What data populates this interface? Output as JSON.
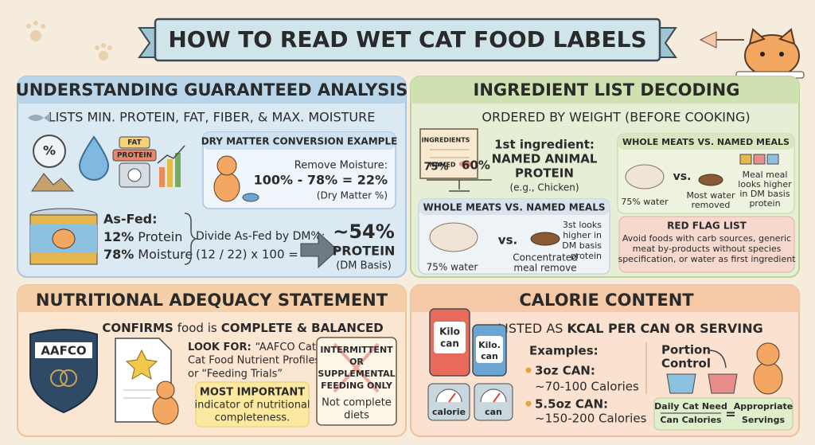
{
  "title": "HOW TO READ WET CAT FOOD LABELS",
  "guaranteed_analysis": {
    "header": "UNDERSTANDING GUARANTEED ANALYSIS",
    "subheader": "LISTS MIN. PROTEIN, FAT, FIBER, & MAX. MOISTURE",
    "icon_labels": [
      "%",
      "FAT",
      "PROTEIN"
    ],
    "example": {
      "title": "DRY MATTER CONVERSION EXAMPLE",
      "lines": [
        "Remove Moisture:",
        "100% - 78% = 22%",
        "(Dry Matter %)"
      ]
    },
    "as_fed": {
      "label": "As-Fed:",
      "protein": [
        "12%",
        "Protein"
      ],
      "moisture": [
        "78%",
        "Moisture"
      ]
    },
    "divide": [
      "Divide As-Fed by DM%:",
      "(12 / 22) x 100 ="
    ],
    "result": [
      "~54%",
      "PROTEIN",
      "(DM Basis)"
    ]
  },
  "ingredient_list": {
    "header": "INGREDIENT LIST DECODING",
    "subheader": "ORDERED BY WEIGHT (BEFORE COOKING)",
    "scroll_labels": [
      "INGREDIENTS",
      "NAMED"
    ],
    "scale_labels": [
      "75%",
      "60%"
    ],
    "first_ingredient": [
      "1st ingredient:",
      "NAMED ANIMAL",
      "PROTEIN",
      "(e.g., Chicken)"
    ],
    "left_compare": {
      "title": "WHOLE MEATS VS. NAMED MEALS",
      "water": "75% water",
      "vs": "vs.",
      "meal": [
        "Concentrated",
        "meal remove"
      ],
      "note": [
        "3st looks",
        "higher in",
        "DM basis",
        "protein"
      ]
    },
    "right_compare": {
      "title": "WHOLE MEATS VS. NAMED MEALS",
      "water": "75% water",
      "vs": "vs.",
      "meal": [
        "Most water",
        "removed"
      ],
      "note": [
        "Meal meal",
        "looks higher",
        "in DM basis",
        "protein"
      ]
    },
    "red_flag": {
      "title": "RED FLAG LIST",
      "lines": [
        "Avoid foods with carb sources, generic",
        "meat by-products without species",
        "specification, or water as first ingredient"
      ]
    }
  },
  "adequacy": {
    "header": "NUTRITIONAL ADEQUACY STATEMENT",
    "confirms": [
      "CONFIRMS",
      "food is",
      "COMPLETE & BALANCED"
    ],
    "badge": "AAFCO",
    "look_for": [
      "LOOK FOR:",
      "“AAFCO Cat",
      "Cat Food Nutrient Profiles”",
      "or “Feeding Trials”"
    ],
    "important": [
      "MOST IMPORTANT",
      "indicator of nutritional",
      "completeness."
    ],
    "warning": [
      "INTERMITTENT",
      "OR",
      "SUPPLEMENTAL",
      "FEEDING ONLY"
    ],
    "warning_note": [
      "Not complete",
      "diets"
    ]
  },
  "calories": {
    "header": "CALORIE CONTENT",
    "subheader": [
      "LISTED AS",
      "KCAL PER CAN OR SERVING"
    ],
    "can_labels": [
      [
        "Kilo",
        "can"
      ],
      [
        "Kilo.",
        "can"
      ]
    ],
    "gauge_labels": [
      "calorie",
      "can"
    ],
    "examples_title": "Examples:",
    "examples": [
      [
        "3oz CAN:",
        "~70-100 Calories"
      ],
      [
        "5.5oz CAN:",
        "~150-200 Calories"
      ]
    ],
    "portion": [
      "Portion",
      "Control"
    ],
    "formula": {
      "top": "Daily Cat Need",
      "bottom": "Can Calories",
      "equals": "=",
      "result": [
        "Appropriate",
        "Servings"
      ]
    }
  }
}
